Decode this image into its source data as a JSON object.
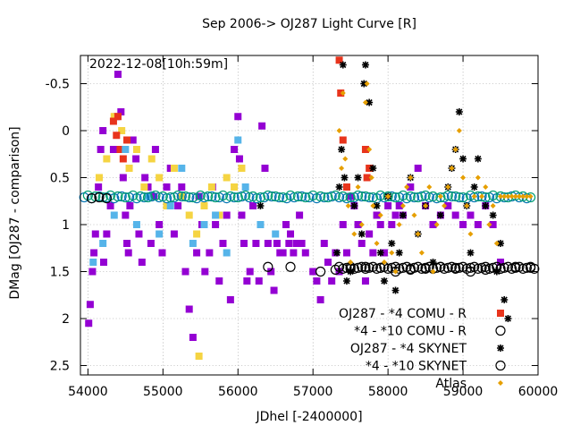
{
  "chart_data": {
    "type": "scatter",
    "title": "Sep 2006-> OJ287 Light Curve [R]",
    "timestamp": "2022-12-08[10h:59m]",
    "xlabel": "JDhel [-2400000]",
    "ylabel": "DMag [OJ287 - comparison]",
    "xlim": [
      53900,
      60000
    ],
    "ylim": [
      2.6,
      -0.8
    ],
    "y_inverted": true,
    "grid": true,
    "legend_position": "right-inside",
    "x_ticks": [
      54000,
      55000,
      56000,
      57000,
      58000,
      59000,
      60000
    ],
    "y_ticks": [
      -0.5,
      0,
      0.5,
      1,
      1.5,
      2,
      2.5
    ],
    "y_tick_labels": [
      "-0.5",
      "0",
      "0.5",
      "1",
      "1.5",
      "2",
      "2.5"
    ],
    "series": [
      {
        "name": "",
        "marker": "filled-square",
        "color": "#9400d3",
        "x": [
          54010,
          54030,
          54060,
          54080,
          54100,
          54140,
          54170,
          54200,
          54210,
          54250,
          54300,
          54340,
          54380,
          54400,
          54440,
          54470,
          54500,
          54520,
          54540,
          54560,
          54600,
          54640,
          54680,
          54720,
          54760,
          54800,
          54840,
          54880,
          54900,
          54950,
          54990,
          55050,
          55100,
          55150,
          55200,
          55250,
          55300,
          55350,
          55400,
          55450,
          55480,
          55520,
          55560,
          55620,
          55660,
          55700,
          55750,
          55800,
          55850,
          55900,
          55950,
          56000,
          56020,
          56050,
          56080,
          56120,
          56160,
          56200,
          56240,
          56280,
          56320,
          56360,
          56400,
          56440,
          56480,
          56520,
          56560,
          56600,
          56640,
          56680,
          56700,
          56740,
          56780,
          56820,
          56850,
          56900,
          57000,
          57050,
          57100,
          57150,
          57200,
          57250,
          57300,
          57350,
          57400,
          57450,
          57500,
          57550,
          57600,
          57650,
          57700,
          57750,
          57800,
          57850,
          57900,
          57950,
          58000,
          58050,
          58100,
          58150,
          58200,
          58300,
          58400,
          58500,
          58600,
          58700,
          58800,
          58900,
          59000,
          59100,
          59200,
          59300,
          59400,
          59500
        ],
        "y": [
          2.05,
          1.85,
          1.5,
          1.3,
          1.1,
          0.6,
          0.2,
          0.0,
          1.4,
          1.1,
          0.8,
          0.2,
          -0.15,
          -0.6,
          -0.2,
          0.5,
          0.9,
          1.2,
          1.3,
          0.8,
          0.1,
          0.3,
          1.1,
          1.4,
          0.5,
          0.6,
          1.2,
          0.7,
          0.2,
          1.0,
          1.3,
          0.6,
          0.4,
          1.1,
          0.8,
          0.6,
          1.5,
          1.9,
          2.2,
          1.3,
          0.7,
          1.0,
          1.5,
          1.3,
          0.6,
          1.0,
          1.6,
          1.2,
          0.9,
          1.8,
          0.2,
          -0.15,
          0.3,
          0.9,
          1.2,
          1.6,
          1.5,
          0.8,
          1.2,
          1.6,
          -0.05,
          0.4,
          1.2,
          1.5,
          1.7,
          1.2,
          1.3,
          1.3,
          1.0,
          1.2,
          1.1,
          1.3,
          1.2,
          0.9,
          1.2,
          1.3,
          1.5,
          1.6,
          1.8,
          1.2,
          1.4,
          1.6,
          1.3,
          1.5,
          1.0,
          1.3,
          0.7,
          0.8,
          1.0,
          1.2,
          1.6,
          1.1,
          1.3,
          0.9,
          1.0,
          1.3,
          0.8,
          1.0,
          0.9,
          0.8,
          0.9,
          0.6,
          0.4,
          0.8,
          1.0,
          0.9,
          0.8,
          0.9,
          1.0,
          0.9,
          1.0,
          0.8,
          1.0,
          1.4
        ]
      },
      {
        "name": "",
        "marker": "filled-square",
        "color": "#f5d442",
        "x": [
          54150,
          54250,
          54350,
          54450,
          54550,
          54650,
          54750,
          54850,
          54950,
          55050,
          55150,
          55250,
          55350,
          55450,
          55480,
          55550,
          55650,
          55750,
          55850,
          55950,
          56050
        ],
        "y": [
          0.5,
          0.3,
          -0.15,
          0.0,
          0.4,
          0.2,
          0.6,
          0.3,
          0.5,
          0.8,
          0.4,
          0.7,
          0.9,
          1.1,
          2.4,
          0.8,
          0.6,
          0.9,
          0.5,
          0.6,
          0.4
        ]
      },
      {
        "name": "",
        "marker": "filled-square",
        "color": "#e8341c",
        "x": [
          54340,
          54380,
          54400,
          54430,
          54470,
          54520
        ],
        "y": [
          -0.1,
          0.05,
          -0.15,
          0.2,
          0.3,
          0.1
        ]
      },
      {
        "name": "",
        "marker": "filled-square",
        "color": "#56b4e9",
        "x": [
          54070,
          54200,
          54350,
          54500,
          54650,
          54800,
          54950,
          55100,
          55250,
          55400,
          55550,
          55700,
          55850,
          56000,
          56100,
          56300,
          56500
        ],
        "y": [
          1.4,
          1.2,
          0.9,
          0.2,
          1.0,
          0.7,
          1.1,
          0.8,
          0.4,
          1.2,
          1.0,
          0.9,
          1.3,
          0.1,
          0.6,
          1.0,
          1.1
        ]
      },
      {
        "name": "",
        "marker": "open-circle",
        "color": "#0072b2",
        "x": [
          53950,
          54050,
          54150,
          54250,
          54350,
          54450,
          54550,
          54650,
          54750,
          54850,
          54950,
          55050,
          55150,
          55250,
          55350,
          55450,
          55550,
          55650,
          55750,
          55850,
          55950,
          56050,
          56150,
          56250,
          56350,
          56450,
          56550,
          56650,
          56750,
          56850,
          56950,
          57050,
          57150,
          57250,
          57350,
          57450,
          57550,
          57650,
          57750,
          57850,
          57950,
          58050,
          58150,
          58250,
          58350,
          58450,
          58550,
          58650,
          58750,
          58850,
          58950,
          59050,
          59150,
          59250,
          59350,
          59450,
          59550,
          59650,
          59750,
          59850
        ],
        "y": [
          0.71,
          0.72,
          0.7,
          0.71,
          0.72,
          0.7,
          0.71,
          0.72,
          0.71,
          0.7,
          0.71,
          0.72,
          0.71,
          0.7,
          0.71,
          0.72,
          0.71,
          0.7,
          0.71,
          0.72,
          0.71,
          0.7,
          0.71,
          0.72,
          0.71,
          0.7,
          0.71,
          0.72,
          0.71,
          0.7,
          0.71,
          0.72,
          0.71,
          0.7,
          0.71,
          0.72,
          0.71,
          0.7,
          0.71,
          0.72,
          0.71,
          0.7,
          0.71,
          0.72,
          0.71,
          0.7,
          0.71,
          0.72,
          0.71,
          0.7,
          0.71,
          0.72,
          0.71,
          0.7,
          0.71,
          0.72,
          0.71,
          0.7,
          0.71,
          0.72
        ]
      },
      {
        "name": "",
        "marker": "open-circle",
        "color": "#009e73",
        "x": [
          54000,
          54100,
          54200,
          54300,
          54400,
          54500,
          54600,
          54700,
          54800,
          54900,
          55000,
          55100,
          55200,
          55300,
          55400,
          55500,
          55600,
          55700,
          55800,
          55900,
          56000,
          56100,
          56200,
          56300,
          56400,
          56500,
          56600,
          56700,
          56800,
          56900,
          57000,
          57100,
          57200,
          57300,
          57400,
          57500,
          57600,
          57700,
          57800,
          57900,
          58000,
          58100,
          58200,
          58300,
          58400,
          58500,
          58600,
          58700,
          58800,
          58900,
          59000,
          59100,
          59200,
          59300,
          59400,
          59500,
          59600,
          59700,
          59800,
          59900
        ],
        "y": [
          0.69,
          0.7,
          0.71,
          0.69,
          0.7,
          0.71,
          0.69,
          0.7,
          0.71,
          0.69,
          0.7,
          0.71,
          0.69,
          0.7,
          0.71,
          0.69,
          0.7,
          0.71,
          0.69,
          0.7,
          0.71,
          0.69,
          0.7,
          0.71,
          0.69,
          0.7,
          0.71,
          0.69,
          0.7,
          0.71,
          0.69,
          0.7,
          0.71,
          0.69,
          0.7,
          0.71,
          0.69,
          0.7,
          0.71,
          0.69,
          0.7,
          0.71,
          0.69,
          0.7,
          0.71,
          0.69,
          0.7,
          0.71,
          0.69,
          0.7,
          0.71,
          0.69,
          0.7,
          0.71,
          0.69,
          0.7,
          0.71,
          0.69,
          0.7,
          0.71
        ]
      },
      {
        "name": "OJ287 - *4 COMU - R",
        "marker": "filled-square",
        "color": "#e8341c",
        "x": [
          57350,
          57370,
          57400,
          57450,
          57700,
          57720,
          57750
        ],
        "y": [
          -0.75,
          -0.4,
          0.1,
          0.6,
          0.2,
          0.5,
          0.4
        ]
      },
      {
        "name": "*4 - *10 COMU - R",
        "marker": "open-circle",
        "color": "#000000",
        "x": [
          54050,
          54150,
          54250,
          56400,
          56700,
          57100,
          57300,
          57500,
          57700,
          57900,
          58100,
          58300,
          58500,
          58700,
          58900,
          59100,
          59300,
          59500,
          59700,
          59900
        ],
        "y": [
          0.72,
          0.71,
          0.72,
          1.45,
          1.45,
          1.5,
          1.48,
          1.47,
          1.45,
          1.46,
          1.5,
          1.48,
          1.47,
          1.45,
          1.46,
          1.5,
          1.48,
          1.47,
          1.45,
          1.46
        ]
      },
      {
        "name": "OJ287 - *4 SKYNET",
        "marker": "star",
        "color": "#000000",
        "x": [
          56300,
          57320,
          57350,
          57380,
          57400,
          57420,
          57450,
          57500,
          57550,
          57600,
          57650,
          57680,
          57700,
          57750,
          57800,
          57850,
          57900,
          57950,
          58000,
          58050,
          58100,
          58150,
          58200,
          58300,
          58400,
          58500,
          58600,
          58700,
          58800,
          58850,
          58900,
          58950,
          59000,
          59050,
          59100,
          59150,
          59200,
          59300,
          59400,
          59450,
          59500,
          59550,
          59600
        ],
        "y": [
          0.8,
          1.3,
          0.6,
          0.2,
          -0.7,
          0.5,
          1.6,
          1.5,
          0.8,
          0.5,
          1.1,
          -0.5,
          -0.7,
          -0.3,
          0.4,
          0.8,
          1.3,
          1.6,
          0.7,
          1.2,
          1.7,
          1.3,
          0.9,
          0.5,
          1.1,
          0.8,
          1.4,
          0.9,
          0.6,
          0.4,
          0.2,
          -0.2,
          0.3,
          0.8,
          1.3,
          0.6,
          0.3,
          0.8,
          0.9,
          1.5,
          1.2,
          1.8,
          2.0
        ]
      },
      {
        "name": "*4 - *10 SKYNET",
        "marker": "open-circle",
        "color": "#000000",
        "x": [
          57350,
          57400,
          57450,
          57500,
          57550,
          57600,
          57650,
          57700,
          57750,
          57800,
          57850,
          57900,
          57950,
          58000,
          58050,
          58100,
          58150,
          58200,
          58250,
          58300,
          58350,
          58400,
          58450,
          58500,
          58550,
          58600,
          58650,
          58700,
          58750,
          58800,
          58850,
          58900,
          58950,
          59000,
          59050,
          59100,
          59150,
          59200,
          59250,
          59300,
          59350,
          59400,
          59450,
          59500,
          59550,
          59600,
          59650,
          59700,
          59750,
          59800,
          59850,
          59900,
          59950
        ],
        "y": [
          1.45,
          1.47,
          1.46,
          1.45,
          1.47,
          1.46,
          1.45,
          1.47,
          1.46,
          1.45,
          1.47,
          1.46,
          1.45,
          1.47,
          1.46,
          1.45,
          1.47,
          1.46,
          1.45,
          1.47,
          1.46,
          1.45,
          1.47,
          1.46,
          1.45,
          1.47,
          1.46,
          1.45,
          1.47,
          1.46,
          1.45,
          1.47,
          1.46,
          1.45,
          1.47,
          1.46,
          1.45,
          1.47,
          1.46,
          1.45,
          1.47,
          1.46,
          1.45,
          1.47,
          1.46,
          1.45,
          1.47,
          1.46,
          1.45,
          1.47,
          1.46,
          1.45,
          1.47
        ]
      },
      {
        "name": "Atlas",
        "marker": "diamond",
        "color": "#e69f00",
        "x": [
          57350,
          57380,
          57400,
          57430,
          57470,
          57500,
          57550,
          57600,
          57650,
          57700,
          57720,
          57750,
          57780,
          57800,
          57850,
          57900,
          57950,
          58000,
          58050,
          58100,
          58150,
          58200,
          58250,
          58300,
          58350,
          58400,
          58450,
          58500,
          58550,
          58600,
          58650,
          58700,
          58750,
          58800,
          58850,
          58900,
          58950,
          59000,
          59050,
          59100,
          59150,
          59200,
          59250,
          59300,
          59350,
          59400,
          59450,
          59500,
          59550,
          59600,
          59650,
          59700,
          59750,
          59800,
          59850,
          59900
        ],
        "y": [
          0.0,
          0.4,
          -0.4,
          0.3,
          0.8,
          1.4,
          1.1,
          0.6,
          1.0,
          -0.3,
          -0.5,
          0.2,
          0.5,
          0.8,
          1.2,
          0.9,
          1.4,
          0.7,
          1.3,
          1.5,
          1.0,
          0.8,
          0.6,
          0.5,
          0.9,
          1.1,
          1.3,
          0.8,
          0.6,
          1.5,
          1.0,
          0.7,
          0.8,
          0.6,
          0.4,
          0.2,
          0.0,
          0.5,
          0.8,
          1.1,
          0.7,
          0.5,
          0.7,
          0.6,
          1.0,
          0.8,
          1.2,
          0.7,
          0.7,
          0.7,
          0.7,
          0.7,
          0.7,
          0.7,
          0.7,
          0.7
        ]
      }
    ]
  }
}
